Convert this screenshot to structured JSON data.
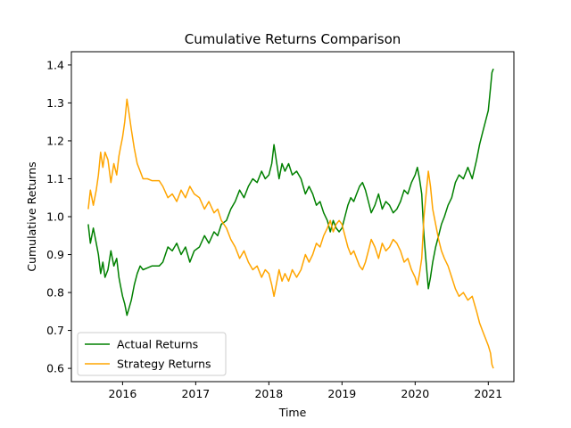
{
  "chart_data": {
    "type": "line",
    "title": "Cumulative Returns Comparison",
    "xlabel": "Time",
    "ylabel": "Cumulative Returns",
    "xlim": [
      2015.3,
      2021.35
    ],
    "ylim": [
      0.565,
      1.435
    ],
    "x_ticks": [
      2016,
      2017,
      2018,
      2019,
      2020,
      2021
    ],
    "x_tick_labels": [
      "2016",
      "2017",
      "2018",
      "2019",
      "2020",
      "2021"
    ],
    "y_ticks": [
      0.6,
      0.7,
      0.8,
      0.9,
      1.0,
      1.1,
      1.2,
      1.3,
      1.4
    ],
    "y_tick_labels": [
      "0.6",
      "0.7",
      "0.8",
      "0.9",
      "1.0",
      "1.1",
      "1.2",
      "1.3",
      "1.4"
    ],
    "grid": false,
    "legend_position": "lower-left",
    "series": [
      {
        "name": "Actual Returns",
        "color": "#008000",
        "points": [
          [
            2015.53,
            0.98
          ],
          [
            2015.56,
            0.93
          ],
          [
            2015.6,
            0.97
          ],
          [
            2015.64,
            0.93
          ],
          [
            2015.67,
            0.9
          ],
          [
            2015.7,
            0.85
          ],
          [
            2015.73,
            0.88
          ],
          [
            2015.76,
            0.84
          ],
          [
            2015.8,
            0.86
          ],
          [
            2015.84,
            0.91
          ],
          [
            2015.88,
            0.87
          ],
          [
            2015.92,
            0.89
          ],
          [
            2015.95,
            0.84
          ],
          [
            2015.97,
            0.82
          ],
          [
            2016.0,
            0.79
          ],
          [
            2016.03,
            0.77
          ],
          [
            2016.06,
            0.74
          ],
          [
            2016.09,
            0.76
          ],
          [
            2016.12,
            0.78
          ],
          [
            2016.16,
            0.82
          ],
          [
            2016.2,
            0.85
          ],
          [
            2016.24,
            0.87
          ],
          [
            2016.28,
            0.86
          ],
          [
            2016.34,
            0.865
          ],
          [
            2016.4,
            0.87
          ],
          [
            2016.5,
            0.87
          ],
          [
            2016.55,
            0.88
          ],
          [
            2016.62,
            0.92
          ],
          [
            2016.68,
            0.91
          ],
          [
            2016.74,
            0.93
          ],
          [
            2016.8,
            0.9
          ],
          [
            2016.86,
            0.92
          ],
          [
            2016.92,
            0.88
          ],
          [
            2016.98,
            0.91
          ],
          [
            2017.05,
            0.92
          ],
          [
            2017.12,
            0.95
          ],
          [
            2017.18,
            0.93
          ],
          [
            2017.25,
            0.96
          ],
          [
            2017.3,
            0.95
          ],
          [
            2017.35,
            0.98
          ],
          [
            2017.42,
            0.99
          ],
          [
            2017.48,
            1.02
          ],
          [
            2017.54,
            1.04
          ],
          [
            2017.6,
            1.07
          ],
          [
            2017.66,
            1.05
          ],
          [
            2017.72,
            1.08
          ],
          [
            2017.78,
            1.1
          ],
          [
            2017.84,
            1.09
          ],
          [
            2017.9,
            1.12
          ],
          [
            2017.95,
            1.1
          ],
          [
            2018.0,
            1.11
          ],
          [
            2018.04,
            1.14
          ],
          [
            2018.07,
            1.19
          ],
          [
            2018.1,
            1.15
          ],
          [
            2018.14,
            1.1
          ],
          [
            2018.18,
            1.14
          ],
          [
            2018.22,
            1.12
          ],
          [
            2018.27,
            1.14
          ],
          [
            2018.32,
            1.11
          ],
          [
            2018.38,
            1.12
          ],
          [
            2018.44,
            1.1
          ],
          [
            2018.5,
            1.06
          ],
          [
            2018.55,
            1.08
          ],
          [
            2018.6,
            1.06
          ],
          [
            2018.65,
            1.03
          ],
          [
            2018.7,
            1.04
          ],
          [
            2018.75,
            1.01
          ],
          [
            2018.8,
            0.99
          ],
          [
            2018.84,
            0.96
          ],
          [
            2018.88,
            0.99
          ],
          [
            2018.92,
            0.97
          ],
          [
            2018.96,
            0.96
          ],
          [
            2019.0,
            0.97
          ],
          [
            2019.04,
            1.0
          ],
          [
            2019.08,
            1.03
          ],
          [
            2019.12,
            1.05
          ],
          [
            2019.16,
            1.04
          ],
          [
            2019.2,
            1.06
          ],
          [
            2019.24,
            1.08
          ],
          [
            2019.28,
            1.09
          ],
          [
            2019.32,
            1.07
          ],
          [
            2019.36,
            1.04
          ],
          [
            2019.4,
            1.01
          ],
          [
            2019.45,
            1.03
          ],
          [
            2019.5,
            1.06
          ],
          [
            2019.55,
            1.02
          ],
          [
            2019.6,
            1.04
          ],
          [
            2019.65,
            1.03
          ],
          [
            2019.7,
            1.01
          ],
          [
            2019.75,
            1.02
          ],
          [
            2019.8,
            1.04
          ],
          [
            2019.85,
            1.07
          ],
          [
            2019.9,
            1.06
          ],
          [
            2019.95,
            1.09
          ],
          [
            2020.0,
            1.11
          ],
          [
            2020.03,
            1.13
          ],
          [
            2020.06,
            1.1
          ],
          [
            2020.09,
            1.06
          ],
          [
            2020.12,
            0.95
          ],
          [
            2020.15,
            0.88
          ],
          [
            2020.18,
            0.81
          ],
          [
            2020.21,
            0.84
          ],
          [
            2020.24,
            0.88
          ],
          [
            2020.28,
            0.92
          ],
          [
            2020.32,
            0.95
          ],
          [
            2020.36,
            0.98
          ],
          [
            2020.4,
            1.0
          ],
          [
            2020.45,
            1.03
          ],
          [
            2020.5,
            1.05
          ],
          [
            2020.55,
            1.09
          ],
          [
            2020.6,
            1.11
          ],
          [
            2020.66,
            1.1
          ],
          [
            2020.72,
            1.13
          ],
          [
            2020.78,
            1.1
          ],
          [
            2020.84,
            1.15
          ],
          [
            2020.88,
            1.19
          ],
          [
            2020.92,
            1.22
          ],
          [
            2020.96,
            1.25
          ],
          [
            2021.0,
            1.28
          ],
          [
            2021.03,
            1.34
          ],
          [
            2021.05,
            1.38
          ],
          [
            2021.07,
            1.39
          ]
        ]
      },
      {
        "name": "Strategy Returns",
        "color": "#FFA500",
        "points": [
          [
            2015.53,
            1.02
          ],
          [
            2015.56,
            1.07
          ],
          [
            2015.6,
            1.03
          ],
          [
            2015.64,
            1.07
          ],
          [
            2015.67,
            1.11
          ],
          [
            2015.7,
            1.17
          ],
          [
            2015.73,
            1.13
          ],
          [
            2015.76,
            1.17
          ],
          [
            2015.8,
            1.15
          ],
          [
            2015.84,
            1.09
          ],
          [
            2015.88,
            1.14
          ],
          [
            2015.92,
            1.11
          ],
          [
            2015.95,
            1.16
          ],
          [
            2015.97,
            1.18
          ],
          [
            2016.0,
            1.21
          ],
          [
            2016.03,
            1.25
          ],
          [
            2016.06,
            1.31
          ],
          [
            2016.09,
            1.27
          ],
          [
            2016.12,
            1.23
          ],
          [
            2016.16,
            1.18
          ],
          [
            2016.2,
            1.14
          ],
          [
            2016.24,
            1.12
          ],
          [
            2016.28,
            1.1
          ],
          [
            2016.34,
            1.1
          ],
          [
            2016.4,
            1.095
          ],
          [
            2016.5,
            1.095
          ],
          [
            2016.55,
            1.08
          ],
          [
            2016.62,
            1.05
          ],
          [
            2016.68,
            1.06
          ],
          [
            2016.74,
            1.04
          ],
          [
            2016.8,
            1.07
          ],
          [
            2016.86,
            1.05
          ],
          [
            2016.92,
            1.08
          ],
          [
            2016.98,
            1.06
          ],
          [
            2017.05,
            1.05
          ],
          [
            2017.12,
            1.02
          ],
          [
            2017.18,
            1.04
          ],
          [
            2017.25,
            1.01
          ],
          [
            2017.3,
            1.02
          ],
          [
            2017.35,
            0.99
          ],
          [
            2017.42,
            0.97
          ],
          [
            2017.48,
            0.94
          ],
          [
            2017.54,
            0.92
          ],
          [
            2017.6,
            0.89
          ],
          [
            2017.66,
            0.91
          ],
          [
            2017.72,
            0.88
          ],
          [
            2017.78,
            0.86
          ],
          [
            2017.84,
            0.87
          ],
          [
            2017.9,
            0.84
          ],
          [
            2017.95,
            0.86
          ],
          [
            2018.0,
            0.85
          ],
          [
            2018.04,
            0.82
          ],
          [
            2018.07,
            0.79
          ],
          [
            2018.1,
            0.82
          ],
          [
            2018.14,
            0.86
          ],
          [
            2018.18,
            0.83
          ],
          [
            2018.22,
            0.85
          ],
          [
            2018.27,
            0.83
          ],
          [
            2018.32,
            0.86
          ],
          [
            2018.38,
            0.84
          ],
          [
            2018.44,
            0.86
          ],
          [
            2018.5,
            0.9
          ],
          [
            2018.55,
            0.88
          ],
          [
            2018.6,
            0.9
          ],
          [
            2018.65,
            0.93
          ],
          [
            2018.7,
            0.92
          ],
          [
            2018.75,
            0.95
          ],
          [
            2018.8,
            0.97
          ],
          [
            2018.84,
            0.99
          ],
          [
            2018.88,
            0.96
          ],
          [
            2018.92,
            0.98
          ],
          [
            2018.96,
            0.99
          ],
          [
            2019.0,
            0.98
          ],
          [
            2019.04,
            0.95
          ],
          [
            2019.08,
            0.92
          ],
          [
            2019.12,
            0.9
          ],
          [
            2019.16,
            0.91
          ],
          [
            2019.2,
            0.89
          ],
          [
            2019.24,
            0.87
          ],
          [
            2019.28,
            0.86
          ],
          [
            2019.32,
            0.88
          ],
          [
            2019.36,
            0.91
          ],
          [
            2019.4,
            0.94
          ],
          [
            2019.45,
            0.92
          ],
          [
            2019.5,
            0.89
          ],
          [
            2019.55,
            0.93
          ],
          [
            2019.6,
            0.91
          ],
          [
            2019.65,
            0.92
          ],
          [
            2019.7,
            0.94
          ],
          [
            2019.75,
            0.93
          ],
          [
            2019.8,
            0.91
          ],
          [
            2019.85,
            0.88
          ],
          [
            2019.9,
            0.89
          ],
          [
            2019.95,
            0.86
          ],
          [
            2020.0,
            0.84
          ],
          [
            2020.03,
            0.82
          ],
          [
            2020.06,
            0.85
          ],
          [
            2020.09,
            0.89
          ],
          [
            2020.12,
            1.0
          ],
          [
            2020.15,
            1.06
          ],
          [
            2020.18,
            1.12
          ],
          [
            2020.21,
            1.08
          ],
          [
            2020.24,
            1.02
          ],
          [
            2020.28,
            0.98
          ],
          [
            2020.32,
            0.94
          ],
          [
            2020.36,
            0.91
          ],
          [
            2020.4,
            0.89
          ],
          [
            2020.45,
            0.87
          ],
          [
            2020.5,
            0.84
          ],
          [
            2020.55,
            0.81
          ],
          [
            2020.6,
            0.79
          ],
          [
            2020.66,
            0.8
          ],
          [
            2020.72,
            0.78
          ],
          [
            2020.78,
            0.79
          ],
          [
            2020.84,
            0.75
          ],
          [
            2020.88,
            0.72
          ],
          [
            2020.92,
            0.7
          ],
          [
            2020.96,
            0.68
          ],
          [
            2021.0,
            0.66
          ],
          [
            2021.03,
            0.64
          ],
          [
            2021.05,
            0.61
          ],
          [
            2021.07,
            0.6
          ]
        ]
      }
    ]
  }
}
